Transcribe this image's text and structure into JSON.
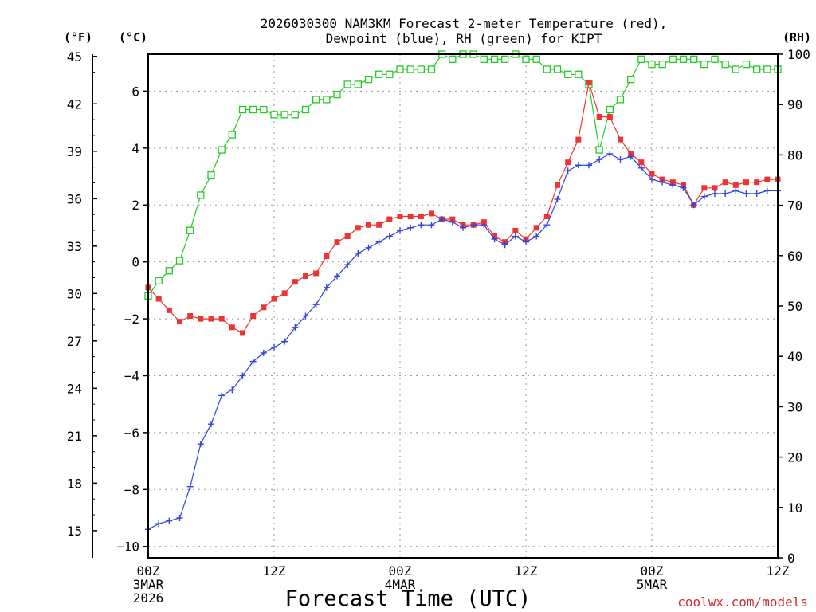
{
  "chart_data": {
    "type": "line",
    "title": [
      "2026030300 NAM3KM Forecast 2-meter Temperature (red),",
      "Dewpoint (blue), RH (green) for KIPT"
    ],
    "xlabel": "Forecast Time (UTC)",
    "credit": "coolwx.com/models",
    "unit_labels": {
      "fahrenheit": "(°F)",
      "celsius": "(°C)",
      "rh": "(RH)"
    },
    "x_range_hours": [
      0,
      60
    ],
    "x_ticks": [
      {
        "h": 0,
        "label": "00Z",
        "date": "3MAR",
        "year": "2026"
      },
      {
        "h": 12,
        "label": "12Z",
        "date": "",
        "year": ""
      },
      {
        "h": 24,
        "label": "00Z",
        "date": "4MAR",
        "year": ""
      },
      {
        "h": 36,
        "label": "12Z",
        "date": "",
        "year": ""
      },
      {
        "h": 48,
        "label": "00Z",
        "date": "5MAR",
        "year": ""
      },
      {
        "h": 60,
        "label": "12Z",
        "date": "",
        "year": ""
      }
    ],
    "y_celsius": {
      "range": [
        -10.4,
        7.3
      ],
      "ticks": [
        "-10",
        "-8",
        "-6",
        "-4",
        "-2",
        "0",
        "2",
        "4",
        "6"
      ]
    },
    "y_fahrenheit": {
      "ticks": [
        "15",
        "18",
        "21",
        "24",
        "27",
        "30",
        "33",
        "36",
        "39",
        "42",
        "45"
      ]
    },
    "y_rh": {
      "range": [
        0,
        100
      ],
      "ticks": [
        "0",
        "10",
        "20",
        "30",
        "40",
        "50",
        "60",
        "70",
        "80",
        "90",
        "100"
      ]
    },
    "series": [
      {
        "name": "Temperature (°C)",
        "color": "#ee3333",
        "marker": "filled-square",
        "values": [
          -0.9,
          -1.3,
          -1.7,
          -2.1,
          -1.9,
          -2.0,
          -2.0,
          -2.0,
          -2.3,
          -2.5,
          -1.9,
          -1.6,
          -1.3,
          -1.1,
          -0.7,
          -0.5,
          -0.4,
          0.2,
          0.7,
          0.9,
          1.2,
          1.3,
          1.3,
          1.5,
          1.6,
          1.6,
          1.6,
          1.7,
          1.5,
          1.5,
          1.3,
          1.3,
          1.4,
          0.9,
          0.7,
          1.1,
          0.8,
          1.2,
          1.6,
          2.7,
          3.5,
          4.3,
          6.3,
          5.1,
          5.1,
          4.3,
          3.8,
          3.5,
          3.1,
          2.9,
          2.8,
          2.7,
          2.0,
          2.6,
          2.6,
          2.8,
          2.7,
          2.8,
          2.8,
          2.9,
          2.9
        ]
      },
      {
        "name": "Dewpoint (°C)",
        "color": "#3344dd",
        "marker": "plus",
        "values": [
          -9.4,
          -9.2,
          -9.1,
          -9.0,
          -7.9,
          -6.4,
          -5.7,
          -4.7,
          -4.5,
          -4.0,
          -3.5,
          -3.2,
          -3.0,
          -2.8,
          -2.3,
          -1.9,
          -1.5,
          -0.9,
          -0.5,
          -0.1,
          0.3,
          0.5,
          0.7,
          0.9,
          1.1,
          1.2,
          1.3,
          1.3,
          1.5,
          1.4,
          1.2,
          1.3,
          1.3,
          0.8,
          0.6,
          0.9,
          0.7,
          0.9,
          1.3,
          2.2,
          3.2,
          3.4,
          3.4,
          3.6,
          3.8,
          3.6,
          3.7,
          3.3,
          2.9,
          2.8,
          2.7,
          2.6,
          2.0,
          2.3,
          2.4,
          2.4,
          2.5,
          2.4,
          2.4,
          2.5,
          2.5
        ]
      },
      {
        "name": "RH (%)",
        "color": "#22cc22",
        "marker": "open-square",
        "values": [
          52,
          55,
          57,
          59,
          65,
          72,
          76,
          81,
          84,
          89,
          89,
          89,
          88,
          88,
          88,
          89,
          91,
          91,
          92,
          94,
          94,
          95,
          96,
          96,
          97,
          97,
          97,
          97,
          100,
          99,
          100,
          100,
          99,
          99,
          99,
          100,
          99,
          99,
          97,
          97,
          96,
          96,
          94,
          81,
          89,
          91,
          95,
          99,
          98,
          98,
          99,
          99,
          99,
          98,
          99,
          98,
          97,
          98,
          97,
          97,
          97
        ]
      }
    ]
  }
}
